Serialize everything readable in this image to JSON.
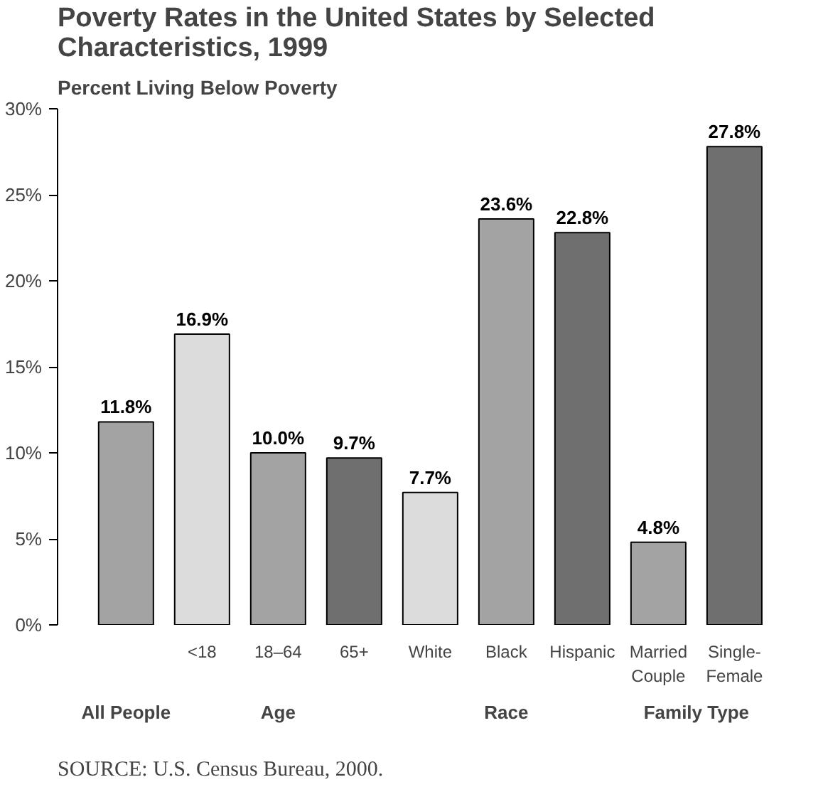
{
  "chart_data": {
    "type": "bar",
    "title": "Poverty Rates in the United States by Selected Characteristics, 1999",
    "ylabel": "Percent Living Below Poverty",
    "categories": [
      null,
      "<18",
      "18–64",
      "65+",
      "White",
      "Black",
      "Hispanic",
      "Married Couple",
      "Single-Female"
    ],
    "values": [
      11.8,
      16.9,
      10.0,
      9.7,
      7.7,
      23.6,
      22.8,
      4.8,
      27.8
    ],
    "colors": [
      "#a3a3a3",
      "#dcdcdc",
      "#a3a3a3",
      "#6f6f6f",
      "#dcdcdc",
      "#a3a3a3",
      "#6f6f6f",
      "#a3a3a3",
      "#6f6f6f"
    ],
    "value_labels": [
      "11.8%",
      "16.9%",
      "10.0%",
      "9.7%",
      "7.7%",
      "23.6%",
      "22.8%",
      "4.8%",
      "27.8%"
    ],
    "ylim": [
      0,
      30
    ],
    "yticks": [
      {
        "value": 0,
        "label": "0%"
      },
      {
        "value": 5,
        "label": "5%"
      },
      {
        "value": 10,
        "label": "10%"
      },
      {
        "value": 15,
        "label": "15%"
      },
      {
        "value": 20,
        "label": "20%"
      },
      {
        "value": 25,
        "label": "25%"
      },
      {
        "value": 30,
        "label": "30%"
      }
    ],
    "grid": false,
    "annotations": [
      "All People",
      "Age",
      "Race",
      "Family Type",
      "SOURCE: U.S. Census Bureau, 2000."
    ]
  }
}
